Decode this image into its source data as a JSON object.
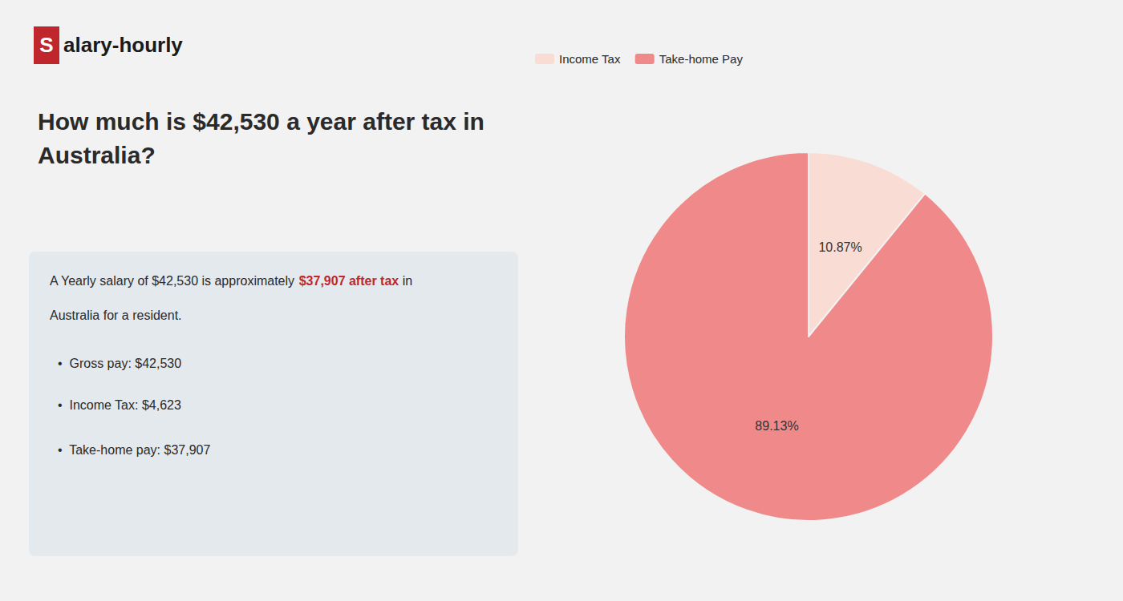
{
  "chart_data": {
    "type": "pie",
    "title": "How much is $42,530 a year after tax in\nAustralia?",
    "categories": [
      "Income Tax",
      "Take-home Pay"
    ],
    "values": [
      10.87,
      89.13
    ],
    "value_labels": [
      "10.87%",
      "89.13%"
    ],
    "colors": [
      "#f9ddd4",
      "#f08a8a"
    ],
    "data_labels": true,
    "legend": "upper left",
    "annotations": [
      "S",
      "alary-hourly",
      "A Yearly salary of $42,530 is approximately ",
      "$37,907 after tax",
      " in",
      "Australia for a resident.",
      "•  Gross pay: $42,530",
      "•  Income Tax: $4,623",
      "•  Take-home pay: $37,907"
    ]
  }
}
